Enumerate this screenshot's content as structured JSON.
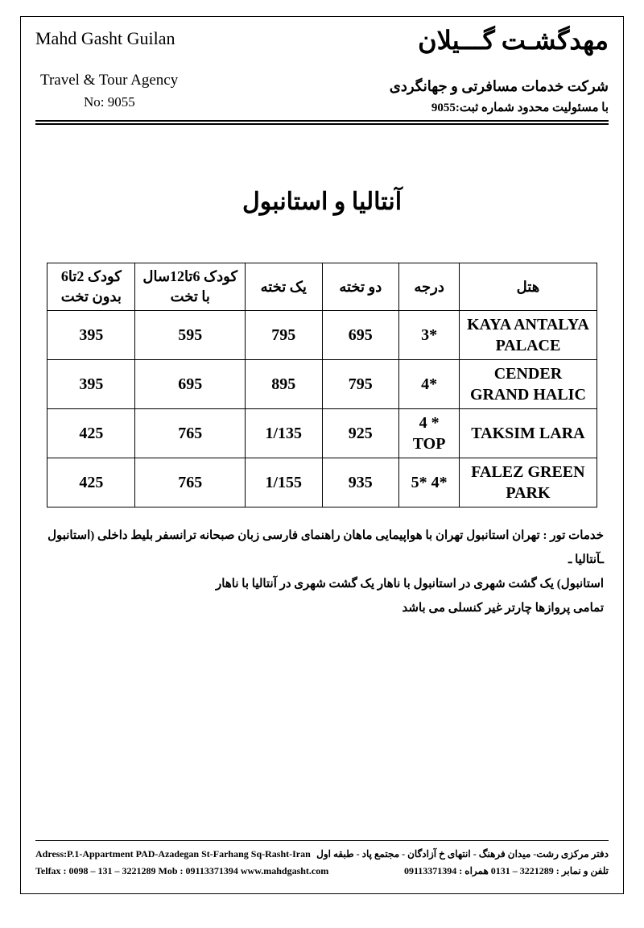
{
  "header": {
    "company_en": "Mahd Gasht  Guilan",
    "company_fa": "مهدگشـت گـــیلان",
    "subtitle_en": "Travel & Tour Agency",
    "subtitle_fa": "شرکت خدمات مسافرتی و جهانگردی",
    "reg_en": "No: 9055",
    "reg_fa": "با مسئولیت محدود   شماره ثبت:9055"
  },
  "title": "آنتالیا و استانبول",
  "table": {
    "columns": [
      "هتل",
      "درجه",
      "دو تخته",
      "یک تخته",
      "کودک 6تا12سال با تخت",
      "کودک 2تا6 بدون تخت"
    ],
    "rows": [
      {
        "hotel": "KAYA ANTALYA PALACE",
        "grade": "3*",
        "dbl": "695",
        "sgl": "795",
        "kid612": "595",
        "kid26": "395"
      },
      {
        "hotel": "CENDER GRAND HALIC",
        "grade": "4*",
        "dbl": "795",
        "sgl": "895",
        "kid612": "695",
        "kid26": "395"
      },
      {
        "hotel": "TAKSIM LARA",
        "grade": "4 * TOP",
        "dbl": "925",
        "sgl": "1/135",
        "kid612": "765",
        "kid26": "425"
      },
      {
        "hotel": "FALEZ GREEN PARK",
        "grade": "5* 4*",
        "dbl": "935",
        "sgl": "1/155",
        "kid612": "765",
        "kid26": "425"
      }
    ]
  },
  "services": {
    "line1": "خدمات تور : تهران استانبول تهران با هواپیمایی ماهان راهنمای فارسی زبان صبحانه ترانسفر بلیط داخلی (استانبول ـآنتالیا ـ",
    "line2": "استانبول) یک گشت شهری در استانبول با ناهار یک گشت شهری در آنتالیا با ناهار",
    "line3": "تمامی پروازها چارتر غیر کنسلی می باشد"
  },
  "footer": {
    "address_en": "Adress:P.1-Appartment PAD-Azadegan St-Farhang Sq-Rasht-Iran",
    "address_fa": "دفتر مرکزی رشت- میدان فرهنگ - انتهای خ آزادگان - مجتمع پاد - طبقه اول",
    "tel_en": "Telfax : 0098 – 131 – 3221289  Mob : 09113371394     www.mahdgasht.com",
    "tel_fa": "تلفن و نمابر : 3221289 – 0131    همراه : 09113371394"
  },
  "style": {
    "text_color": "#000000",
    "background_color": "#ffffff",
    "border_color": "#000000",
    "title_fontsize": 30,
    "header_fontsize": 18,
    "cell_fontsize": 20
  }
}
